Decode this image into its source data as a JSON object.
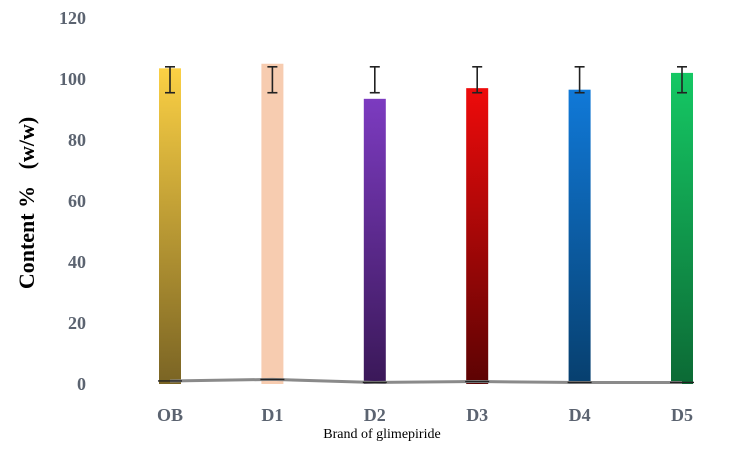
{
  "chart_data": {
    "type": "bar",
    "title": "",
    "xlabel": "Brand of glimepiride",
    "ylabel": "Content %   (w/w)",
    "ylim": [
      0,
      120
    ],
    "yticks": [
      0,
      20,
      40,
      60,
      80,
      100,
      120
    ],
    "categories": [
      "OB",
      "D1",
      "D2",
      "D3",
      "D4",
      "D5"
    ],
    "values": [
      103.5,
      105,
      93.5,
      97,
      96.5,
      102
    ],
    "error_bars": [
      {
        "low": 95.5,
        "high": 104
      },
      {
        "low": 95.5,
        "high": 104
      },
      {
        "low": 95.5,
        "high": 104
      },
      {
        "low": 95.5,
        "high": 104
      },
      {
        "low": 95.5,
        "high": 104
      },
      {
        "low": 95.5,
        "high": 104
      }
    ],
    "baseline_line_values": [
      1,
      1.5,
      0.5,
      0.8,
      0.5,
      0.5
    ],
    "bar_colors": [
      {
        "top": "#fbd044",
        "bottom": "#7a6424"
      },
      {
        "top": "#f7ccb0",
        "bottom": "#f7ccb0"
      },
      {
        "top": "#7c3bc0",
        "bottom": "#3a1858"
      },
      {
        "top": "#ee0b0b",
        "bottom": "#5c0303"
      },
      {
        "top": "#1079d8",
        "bottom": "#073f6e"
      },
      {
        "top": "#15c864",
        "bottom": "#0c6a35"
      }
    ],
    "grid": false,
    "legend": "none"
  }
}
